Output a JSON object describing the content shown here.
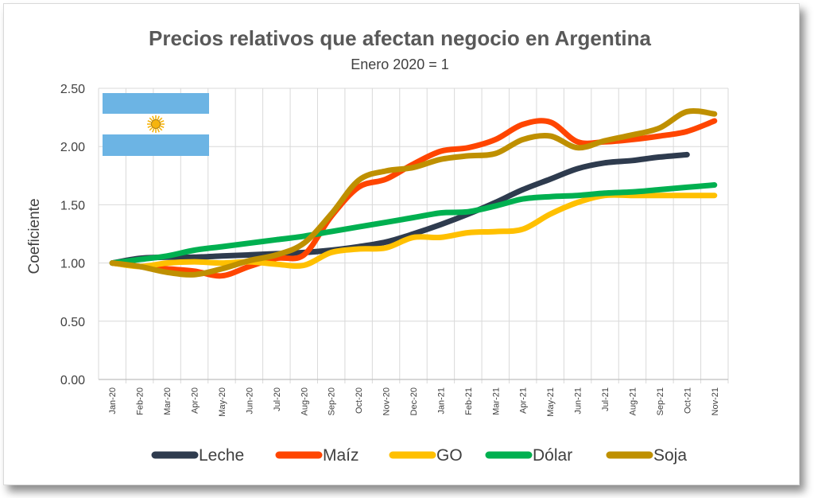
{
  "chart_data": {
    "type": "line",
    "title": "Precios relativos que afectan negocio en Argentina",
    "subtitle": "Enero 2020 = 1",
    "xlabel": "",
    "ylabel": "Coeficiente",
    "ylim": [
      0,
      2.5
    ],
    "yticks": [
      "0.00",
      "0.50",
      "1.00",
      "1.50",
      "2.00",
      "2.50"
    ],
    "grid": true,
    "legend_position": "bottom",
    "categories": [
      "Jan-20",
      "Feb-20",
      "Mar-20",
      "Apr-20",
      "May-20",
      "Jun-20",
      "Jul-20",
      "Aug-20",
      "Sep-20",
      "Oct-20",
      "Nov-20",
      "Dec-20",
      "Jan-21",
      "Feb-21",
      "Mar-21",
      "Apr-21",
      "May-21",
      "Jun-21",
      "Jul-21",
      "Aug-21",
      "Sep-21",
      "Oct-21",
      "Nov-21"
    ],
    "series": [
      {
        "name": "Leche",
        "color": "#2e3b4e",
        "values": [
          1.0,
          1.04,
          1.05,
          1.05,
          1.06,
          1.07,
          1.08,
          1.09,
          1.11,
          1.14,
          1.18,
          1.25,
          1.33,
          1.42,
          1.52,
          1.63,
          1.72,
          1.81,
          1.86,
          1.88,
          1.91,
          1.93,
          null
        ]
      },
      {
        "name": "Maíz",
        "color": "#ff4500",
        "values": [
          1.0,
          0.97,
          0.95,
          0.93,
          0.89,
          0.97,
          1.04,
          1.07,
          1.4,
          1.65,
          1.72,
          1.85,
          1.96,
          1.99,
          2.06,
          2.19,
          2.21,
          2.04,
          2.04,
          2.06,
          2.09,
          2.13,
          2.22
        ]
      },
      {
        "name": "GO",
        "color": "#ffc000",
        "values": [
          1.0,
          0.97,
          1.0,
          1.01,
          1.0,
          1.01,
          0.99,
          0.98,
          1.09,
          1.12,
          1.13,
          1.22,
          1.22,
          1.26,
          1.27,
          1.29,
          1.42,
          1.52,
          1.58,
          1.58,
          1.58,
          1.58,
          1.58
        ]
      },
      {
        "name": "Dólar",
        "color": "#00b050",
        "values": [
          1.0,
          1.03,
          1.06,
          1.11,
          1.14,
          1.17,
          1.2,
          1.23,
          1.27,
          1.31,
          1.35,
          1.39,
          1.43,
          1.44,
          1.49,
          1.55,
          1.57,
          1.58,
          1.6,
          1.61,
          1.63,
          1.65,
          1.67
        ]
      },
      {
        "name": "Soja",
        "color": "#bf9000",
        "values": [
          1.0,
          0.97,
          0.92,
          0.9,
          0.95,
          1.02,
          1.07,
          1.17,
          1.42,
          1.71,
          1.79,
          1.82,
          1.89,
          1.92,
          1.94,
          2.06,
          2.09,
          1.99,
          2.05,
          2.1,
          2.16,
          2.3,
          2.28
        ]
      }
    ]
  },
  "flag": {
    "name": "argentina-flag",
    "color_stripe": "#6cb4e4",
    "color_sun": "#f6b40e"
  }
}
